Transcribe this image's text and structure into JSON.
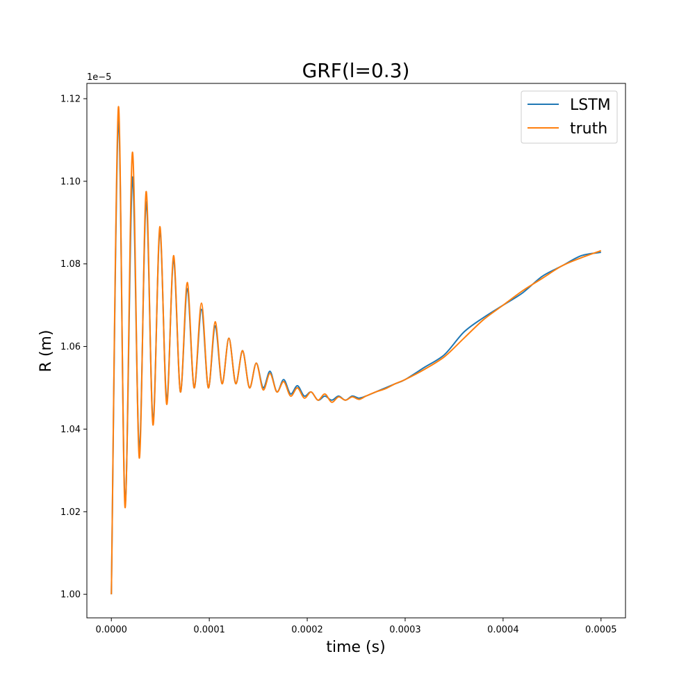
{
  "chart_data": {
    "type": "line",
    "title": "GRF(l=0.3)",
    "xlabel": "time (s)",
    "ylabel": "R (m)",
    "y_offset_label": "1e−5",
    "xlim": [
      -2.5e-05,
      0.000525
    ],
    "ylim": [
      0.9943,
      1.1237
    ],
    "x_ticks": [
      0.0,
      0.0001,
      0.0002,
      0.0003,
      0.0004,
      0.0005
    ],
    "x_tick_labels": [
      "0.0000",
      "0.0001",
      "0.0002",
      "0.0003",
      "0.0004",
      "0.0005"
    ],
    "y_ticks": [
      1.0,
      1.02,
      1.04,
      1.06,
      1.08,
      1.1,
      1.12
    ],
    "y_tick_labels": [
      "1.00",
      "1.02",
      "1.04",
      "1.06",
      "1.08",
      "1.10",
      "1.12"
    ],
    "grid": false,
    "legend_position": "upper right",
    "colors": {
      "LSTM": "#1f77b4",
      "truth": "#ff7f0e"
    },
    "series": [
      {
        "name": "LSTM",
        "x": [
          0.0,
          7.2e-06,
          1.4e-05,
          2.15e-05,
          2.85e-05,
          3.55e-05,
          4.25e-05,
          4.95e-05,
          5.65e-05,
          6.35e-05,
          7.05e-05,
          7.75e-05,
          8.45e-05,
          9.2e-05,
          9.9e-05,
          0.000106,
          0.000113,
          0.00012,
          0.000127,
          0.000134,
          0.000141,
          0.000148,
          0.000155,
          0.000162,
          0.000169,
          0.000176,
          0.000183,
          0.00019,
          0.000197,
          0.000204,
          0.000211,
          0.000218,
          0.000225,
          0.000232,
          0.000239,
          0.000246,
          0.000253,
          0.00026,
          0.00027,
          0.00028,
          0.00029,
          0.0003,
          0.00032,
          0.00034,
          0.00036,
          0.00038,
          0.0004,
          0.00042,
          0.00044,
          0.00046,
          0.00048,
          0.0005
        ],
        "y": [
          1.0,
          1.115,
          1.022,
          1.101,
          1.035,
          1.095,
          1.042,
          1.088,
          1.047,
          1.081,
          1.049,
          1.074,
          1.05,
          1.069,
          1.05,
          1.065,
          1.051,
          1.062,
          1.051,
          1.059,
          1.05,
          1.056,
          1.05,
          1.054,
          1.049,
          1.052,
          1.0485,
          1.0505,
          1.048,
          1.049,
          1.047,
          1.048,
          1.047,
          1.048,
          1.047,
          1.048,
          1.0475,
          1.048,
          1.049,
          1.05,
          1.051,
          1.052,
          1.055,
          1.058,
          1.0635,
          1.067,
          1.07,
          1.073,
          1.077,
          1.0795,
          1.082,
          1.0828
        ]
      },
      {
        "name": "truth",
        "x": [
          0.0,
          7.2e-06,
          1.4e-05,
          2.15e-05,
          2.85e-05,
          3.55e-05,
          4.25e-05,
          4.95e-05,
          5.65e-05,
          6.35e-05,
          7.05e-05,
          7.75e-05,
          8.45e-05,
          9.2e-05,
          9.9e-05,
          0.000106,
          0.000113,
          0.00012,
          0.000127,
          0.000134,
          0.000141,
          0.000148,
          0.000155,
          0.000162,
          0.000169,
          0.000176,
          0.000183,
          0.00019,
          0.000197,
          0.000204,
          0.000211,
          0.000218,
          0.000225,
          0.000232,
          0.000239,
          0.000246,
          0.000253,
          0.00026,
          0.00027,
          0.00028,
          0.00029,
          0.0003,
          0.00032,
          0.00034,
          0.00036,
          0.00038,
          0.0004,
          0.00042,
          0.00044,
          0.00046,
          0.00048,
          0.0005
        ],
        "y": [
          1.0,
          1.118,
          1.021,
          1.107,
          1.033,
          1.0975,
          1.041,
          1.089,
          1.046,
          1.082,
          1.049,
          1.0755,
          1.05,
          1.0705,
          1.05,
          1.066,
          1.051,
          1.062,
          1.051,
          1.059,
          1.05,
          1.056,
          1.0495,
          1.0535,
          1.049,
          1.0515,
          1.048,
          1.05,
          1.0475,
          1.049,
          1.047,
          1.0485,
          1.0465,
          1.0478,
          1.047,
          1.0478,
          1.0472,
          1.048,
          1.049,
          1.0498,
          1.051,
          1.052,
          1.0545,
          1.0575,
          1.062,
          1.0665,
          1.07,
          1.0735,
          1.0765,
          1.0795,
          1.0815,
          1.0832
        ]
      }
    ]
  }
}
